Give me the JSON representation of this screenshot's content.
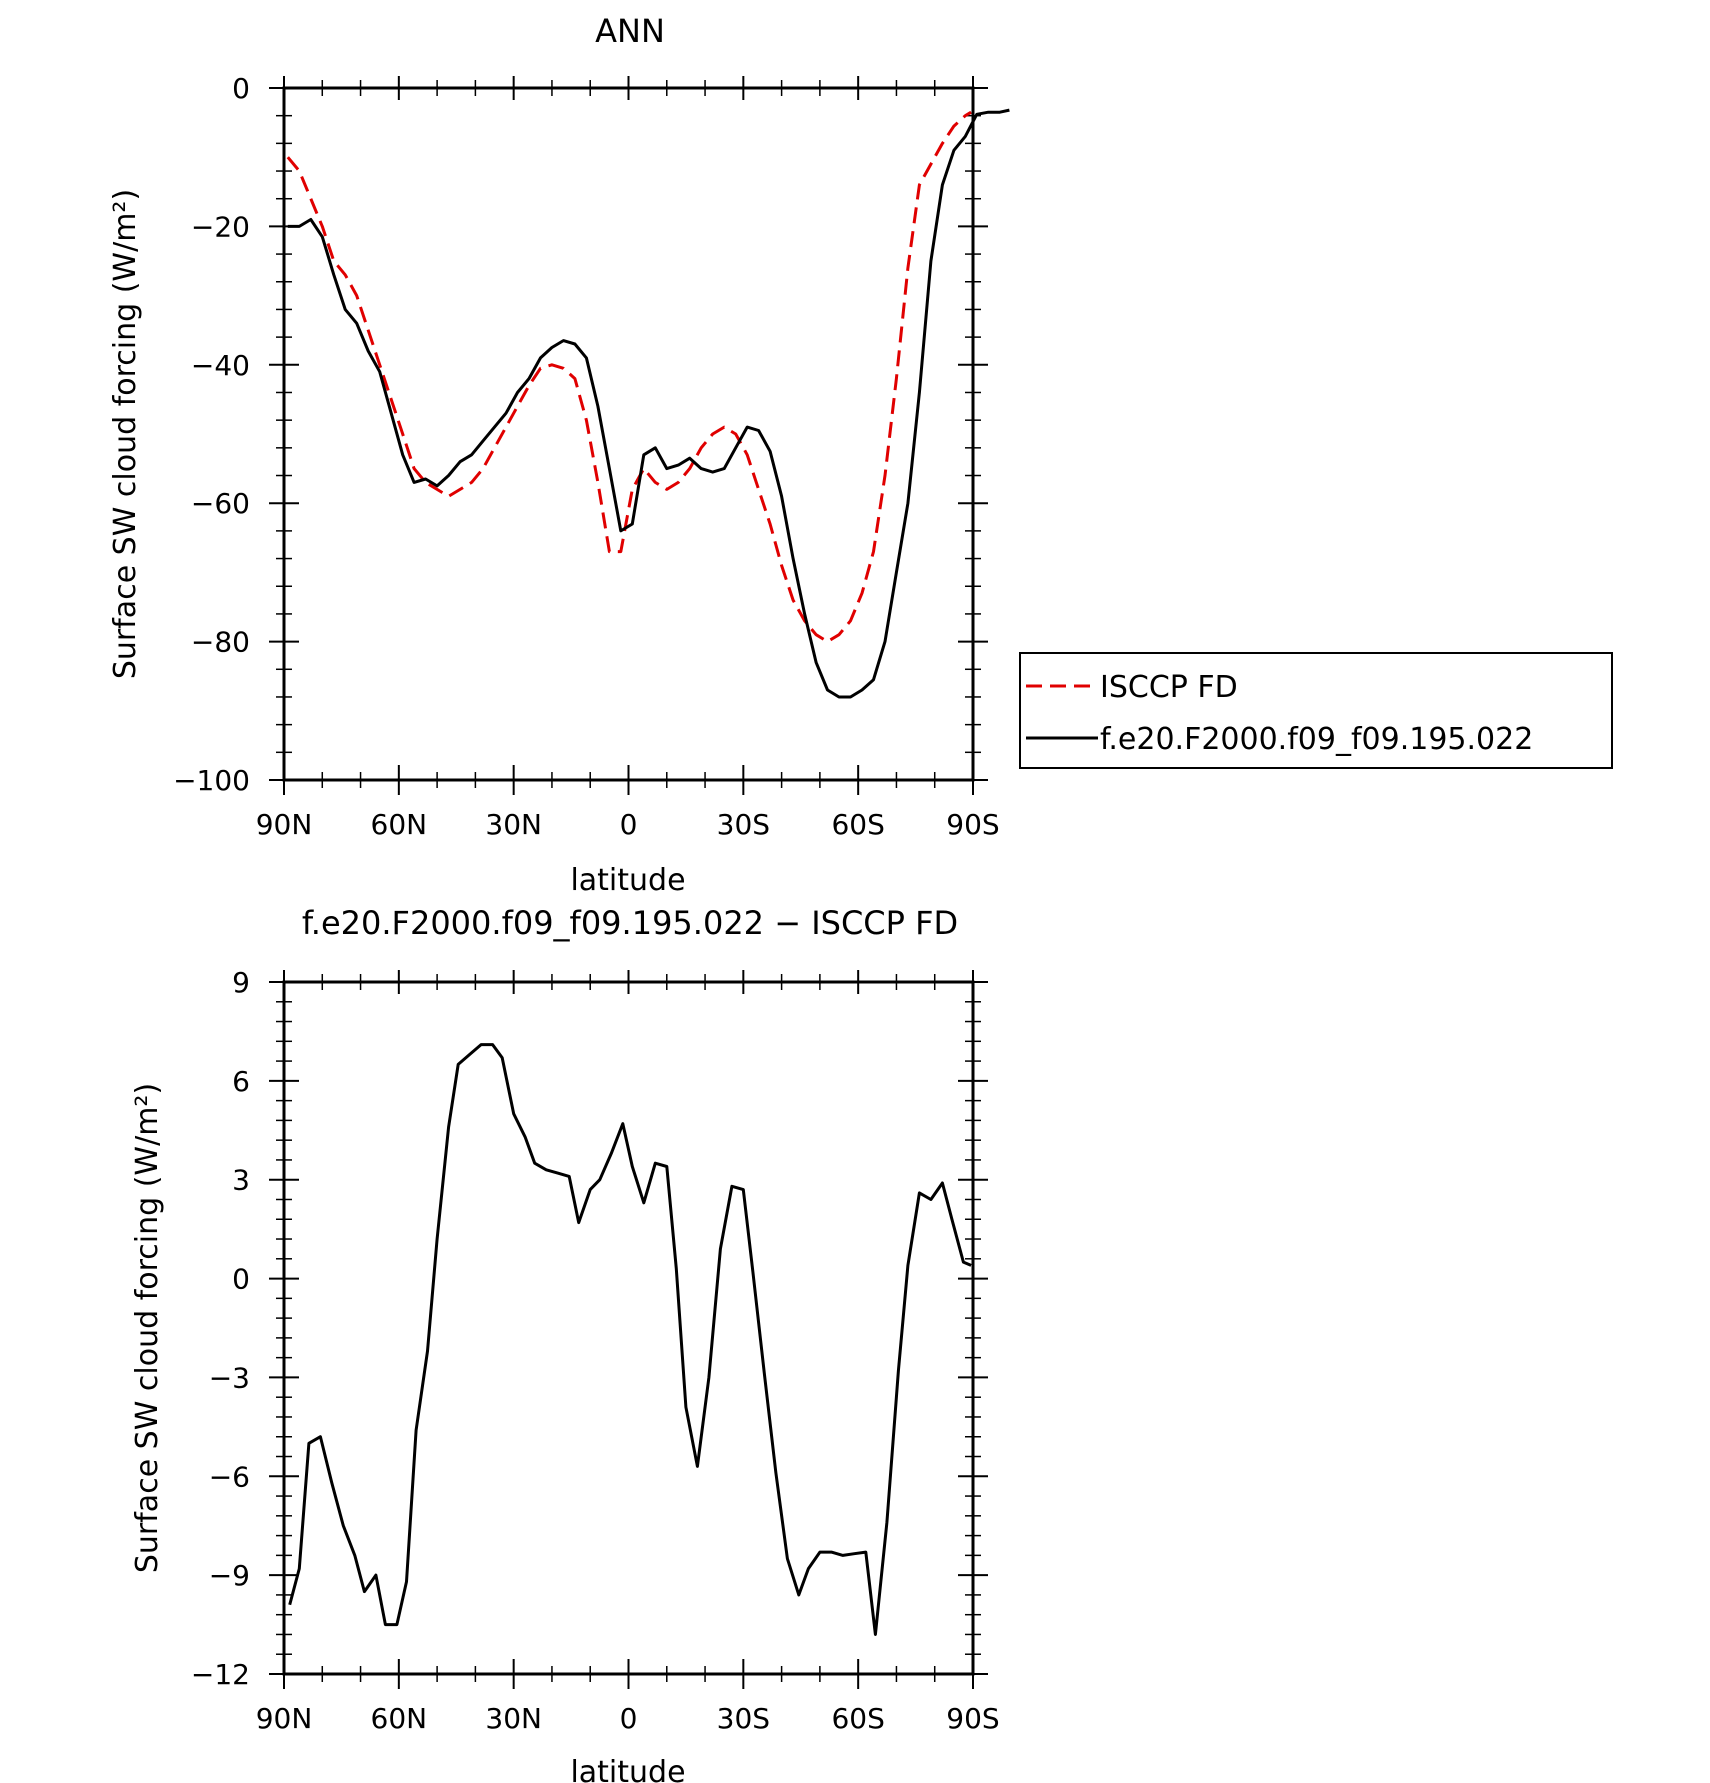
{
  "chart_data": [
    {
      "type": "line",
      "title": "ANN",
      "xlabel": "latitude",
      "ylabel": "Surface SW cloud forcing (W/m²)",
      "xlim": [
        90,
        -90
      ],
      "ylim": [
        -100,
        0
      ],
      "xticks": [
        90,
        60,
        30,
        0,
        -30,
        -60,
        -90
      ],
      "xtick_labels": [
        "90N",
        "60N",
        "30N",
        "0",
        "30S",
        "60S",
        "90S"
      ],
      "yticks": [
        0,
        -20,
        -40,
        -60,
        -80,
        -100
      ],
      "ytick_labels": [
        "0",
        "−20",
        "−40",
        "−60",
        "−80",
        "−100"
      ],
      "grid": false,
      "legend_position": "right",
      "series": [
        {
          "name": "ISCCP FD",
          "color": "#e00000",
          "style": "dashed",
          "points": [
            [
              89,
              -10
            ],
            [
              86,
              -12
            ],
            [
              83,
              -16
            ],
            [
              80,
              -20
            ],
            [
              77,
              -25
            ],
            [
              74,
              -27
            ],
            [
              71,
              -30
            ],
            [
              68,
              -35
            ],
            [
              65,
              -40
            ],
            [
              62,
              -45
            ],
            [
              59,
              -50
            ],
            [
              56,
              -55
            ],
            [
              53,
              -57
            ],
            [
              50,
              -58
            ],
            [
              47,
              -59
            ],
            [
              44,
              -58
            ],
            [
              41,
              -57
            ],
            [
              38,
              -55
            ],
            [
              35,
              -52
            ],
            [
              32,
              -49
            ],
            [
              29,
              -46
            ],
            [
              26,
              -43
            ],
            [
              23,
              -40.5
            ],
            [
              20,
              -40
            ],
            [
              17,
              -40.5
            ],
            [
              14,
              -42
            ],
            [
              11,
              -48
            ],
            [
              8,
              -57
            ],
            [
              5,
              -67
            ],
            [
              2,
              -67
            ],
            [
              -1,
              -58
            ],
            [
              -4,
              -55
            ],
            [
              -7,
              -57
            ],
            [
              -10,
              -58
            ],
            [
              -13,
              -57
            ],
            [
              -16,
              -55
            ],
            [
              -19,
              -52
            ],
            [
              -22,
              -50
            ],
            [
              -25,
              -49
            ],
            [
              -28,
              -50
            ],
            [
              -31,
              -53
            ],
            [
              -34,
              -58
            ],
            [
              -37,
              -63
            ],
            [
              -40,
              -69
            ],
            [
              -43,
              -74
            ],
            [
              -46,
              -77
            ],
            [
              -49,
              -79
            ],
            [
              -52,
              -80
            ],
            [
              -55,
              -79
            ],
            [
              -58,
              -77
            ],
            [
              -61,
              -73
            ],
            [
              -64,
              -67
            ],
            [
              -67,
              -56
            ],
            [
              -70,
              -42
            ],
            [
              -73,
              -26
            ],
            [
              -76,
              -14
            ],
            [
              -79,
              -11
            ],
            [
              -82,
              -8
            ],
            [
              -85,
              -5.5
            ],
            [
              -88,
              -4
            ],
            [
              -89.5,
              -3.5
            ]
          ]
        },
        {
          "name": "f.e20.F2000.f09_f09.195.022",
          "color": "#000000",
          "style": "solid",
          "points": [
            [
              89,
              -20
            ],
            [
              86,
              -20
            ],
            [
              83,
              -19
            ],
            [
              80,
              -21.5
            ],
            [
              77,
              -27
            ],
            [
              74,
              -32
            ],
            [
              71,
              -34
            ],
            [
              68,
              -38
            ],
            [
              65,
              -41
            ],
            [
              62,
              -47
            ],
            [
              59,
              -53
            ],
            [
              56,
              -57
            ],
            [
              53,
              -56.5
            ],
            [
              50,
              -57.5
            ],
            [
              47,
              -56
            ],
            [
              44,
              -54
            ],
            [
              41,
              -53
            ],
            [
              38,
              -51
            ],
            [
              35,
              -49
            ],
            [
              32,
              -47
            ],
            [
              29,
              -44
            ],
            [
              26,
              -42
            ],
            [
              23,
              -39
            ],
            [
              20,
              -37.5
            ],
            [
              17,
              -36.5
            ],
            [
              14,
              -37
            ],
            [
              11,
              -39
            ],
            [
              8,
              -46
            ],
            [
              5,
              -55
            ],
            [
              2,
              -64
            ],
            [
              -1,
              -63
            ],
            [
              -4,
              -53
            ],
            [
              -7,
              -52
            ],
            [
              -10,
              -55
            ],
            [
              -13,
              -54.5
            ],
            [
              -16,
              -53.5
            ],
            [
              -19,
              -55
            ],
            [
              -22,
              -55.5
            ],
            [
              -25,
              -55
            ],
            [
              -28,
              -52
            ],
            [
              -31,
              -49
            ],
            [
              -34,
              -49.5
            ],
            [
              -37,
              -52.5
            ],
            [
              -40,
              -59
            ],
            [
              -43,
              -68
            ],
            [
              -46,
              -76
            ],
            [
              -49,
              -83
            ],
            [
              -52,
              -87
            ],
            [
              -55,
              -88
            ],
            [
              -58,
              -88
            ],
            [
              -61,
              -87
            ],
            [
              -64,
              -85.5
            ],
            [
              -67,
              -80
            ],
            [
              -70,
              -70
            ],
            [
              -73,
              -60
            ],
            [
              -76,
              -44
            ],
            [
              -79,
              -25
            ],
            [
              -82,
              -14
            ],
            [
              -85,
              -9
            ],
            [
              -88,
              -7
            ],
            [
              -91,
              -3.8
            ],
            [
              -94,
              -3.5
            ],
            [
              -97,
              -3.5
            ],
            [
              -99.5,
              -3.2
            ]
          ]
        }
      ]
    },
    {
      "type": "line",
      "title": "f.e20.F2000.f09_f09.195.022 − ISCCP FD",
      "xlabel": "latitude",
      "ylabel": "Surface SW cloud forcing (W/m²)",
      "xlim": [
        90,
        -90
      ],
      "ylim": [
        -12,
        9
      ],
      "xticks": [
        90,
        60,
        30,
        0,
        -30,
        -60,
        -90
      ],
      "xtick_labels": [
        "90N",
        "60N",
        "30N",
        "0",
        "30S",
        "60S",
        "90S"
      ],
      "yticks": [
        9,
        6,
        3,
        0,
        -3,
        -6,
        -9,
        -12
      ],
      "ytick_labels": [
        "9",
        "6",
        "3",
        "0",
        "−3",
        "−6",
        "−9",
        "−12"
      ],
      "grid": false,
      "series": [
        {
          "color": "#000000",
          "style": "solid",
          "points": [
            [
              88.5,
              -9.9
            ],
            [
              86,
              -8.8
            ],
            [
              83.5,
              -5
            ],
            [
              80.5,
              -4.8
            ],
            [
              77.5,
              -6.2
            ],
            [
              74.5,
              -7.5
            ],
            [
              71.5,
              -8.4
            ],
            [
              69,
              -9.5
            ],
            [
              66,
              -9
            ],
            [
              63.5,
              -10.5
            ],
            [
              60.5,
              -10.5
            ],
            [
              58,
              -9.2
            ],
            [
              55.5,
              -4.6
            ],
            [
              52.5,
              -2.2
            ],
            [
              50,
              1.2
            ],
            [
              47,
              4.6
            ],
            [
              44.5,
              6.5
            ],
            [
              41.5,
              6.8
            ],
            [
              38.5,
              7.1
            ],
            [
              35.5,
              7.1
            ],
            [
              33,
              6.7
            ],
            [
              30,
              5
            ],
            [
              27,
              4.3
            ],
            [
              24.5,
              3.5
            ],
            [
              21.5,
              3.3
            ],
            [
              18.5,
              3.2
            ],
            [
              15.5,
              3.1
            ],
            [
              13,
              1.7
            ],
            [
              10,
              2.7
            ],
            [
              7.5,
              3
            ],
            [
              4.5,
              3.8
            ],
            [
              1.5,
              4.7
            ],
            [
              -1,
              3.4
            ],
            [
              -4,
              2.3
            ],
            [
              -7,
              3.5
            ],
            [
              -10,
              3.4
            ],
            [
              -12.5,
              0.3
            ],
            [
              -15,
              -3.9
            ],
            [
              -18,
              -5.7
            ],
            [
              -21,
              -3
            ],
            [
              -24,
              0.9
            ],
            [
              -27,
              2.8
            ],
            [
              -30,
              2.7
            ],
            [
              -32.5,
              0.2
            ],
            [
              -35.5,
              -2.9
            ],
            [
              -38.5,
              -5.9
            ],
            [
              -41.5,
              -8.5
            ],
            [
              -44.5,
              -9.6
            ],
            [
              -47,
              -8.8
            ],
            [
              -50,
              -8.3
            ],
            [
              -53,
              -8.3
            ],
            [
              -56,
              -8.4
            ],
            [
              -59,
              -8.35
            ],
            [
              -62,
              -8.3
            ],
            [
              -64.5,
              -10.8
            ],
            [
              -67.5,
              -7.4
            ],
            [
              -70.5,
              -2.8
            ],
            [
              -73,
              0.4
            ],
            [
              -76,
              2.6
            ],
            [
              -79,
              2.4
            ],
            [
              -82,
              2.9
            ],
            [
              -84.5,
              1.8
            ],
            [
              -87.5,
              0.5
            ],
            [
              -89.5,
              0.4
            ]
          ]
        }
      ]
    }
  ]
}
